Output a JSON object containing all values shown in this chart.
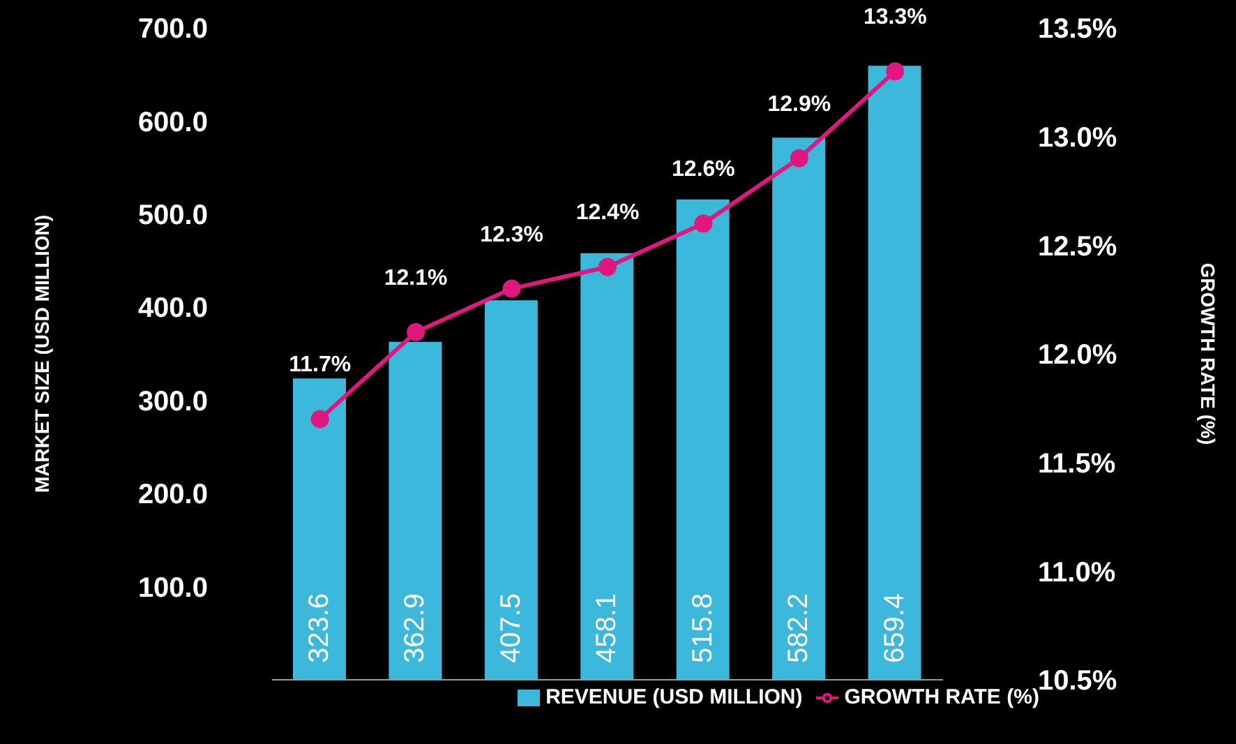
{
  "chart_data": {
    "type": "bar",
    "xlabel": null,
    "ylabel": "MARKET SIZE (USD MILLION)",
    "y2label": "GROWTH RATE (%)",
    "categories": [
      null,
      null,
      null,
      null,
      null,
      null,
      null
    ],
    "series": [
      {
        "name": "REVENUE (USD MILLION)",
        "color": "#3bb8dc",
        "values": [
          323.6,
          362.9,
          407.5,
          458.1,
          515.8,
          582.2,
          659.4
        ],
        "value_labels": [
          "323.6",
          "362.9",
          "407.5",
          "458.1",
          "515.8",
          "582.2",
          "659.4"
        ]
      },
      {
        "name": "GROWTH RATE (%)",
        "type": "line",
        "axis": "y2",
        "color": "#e0177f",
        "marker": "circle",
        "values": [
          11.7,
          12.1,
          12.3,
          12.4,
          12.6,
          12.9,
          13.3
        ],
        "value_labels": [
          "11.7%",
          "12.1%",
          "12.3%",
          "12.4%",
          "12.6%",
          "12.9%",
          "13.3%"
        ]
      }
    ],
    "ylim": [
      0,
      700
    ],
    "yticks": [
      {
        "value": 0,
        "label": null
      },
      {
        "value": 100,
        "label": "100.0"
      },
      {
        "value": 200,
        "label": "200.0"
      },
      {
        "value": 300,
        "label": "300.0"
      },
      {
        "value": 400,
        "label": "400.0"
      },
      {
        "value": 500,
        "label": "500.0"
      },
      {
        "value": 600,
        "label": "600.0"
      },
      {
        "value": 700,
        "label": "700.0"
      }
    ],
    "y2lim": [
      10.5,
      13.5
    ],
    "y2ticks": [
      {
        "value": 10.5,
        "label": "10.5%"
      },
      {
        "value": 11,
        "label": "11.0%"
      },
      {
        "value": 11.5,
        "label": "11.5%"
      },
      {
        "value": 12,
        "label": "12.0%"
      },
      {
        "value": 12.5,
        "label": "12.5%"
      },
      {
        "value": 13,
        "label": "13.0%"
      },
      {
        "value": 13.5,
        "label": "13.5%"
      }
    ],
    "grid": false,
    "legend": "bottom"
  }
}
